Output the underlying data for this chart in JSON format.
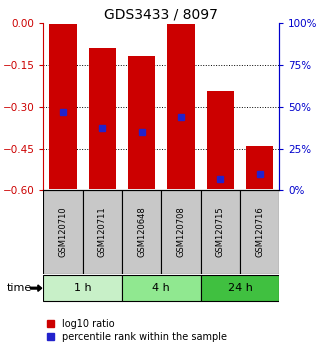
{
  "title": "GDS3433 / 8097",
  "samples": [
    "GSM120710",
    "GSM120711",
    "GSM120648",
    "GSM120708",
    "GSM120715",
    "GSM120716"
  ],
  "groups": [
    {
      "label": "1 h",
      "indices": [
        0,
        1
      ],
      "color": "#c8f0c8"
    },
    {
      "label": "4 h",
      "indices": [
        2,
        3
      ],
      "color": "#90e890"
    },
    {
      "label": "24 h",
      "indices": [
        4,
        5
      ],
      "color": "#40c040"
    }
  ],
  "log10_top": [
    -0.005,
    -0.09,
    -0.12,
    -0.005,
    -0.245,
    -0.44
  ],
  "log10_bottom": [
    -0.595,
    -0.595,
    -0.595,
    -0.595,
    -0.595,
    -0.595
  ],
  "percentile_rank": [
    47,
    37,
    35,
    44,
    7,
    10
  ],
  "ylim_left": [
    -0.6,
    0.0
  ],
  "ylim_right": [
    0,
    100
  ],
  "yticks_left": [
    0.0,
    -0.15,
    -0.3,
    -0.45,
    -0.6
  ],
  "yticks_right": [
    0,
    25,
    50,
    75,
    100
  ],
  "bar_color": "#cc0000",
  "marker_color": "#2222cc",
  "left_axis_color": "#cc0000",
  "right_axis_color": "#0000cc",
  "sample_bg_color": "#c8c8c8",
  "legend_red_label": "log10 ratio",
  "legend_blue_label": "percentile rank within the sample",
  "time_label": "time"
}
